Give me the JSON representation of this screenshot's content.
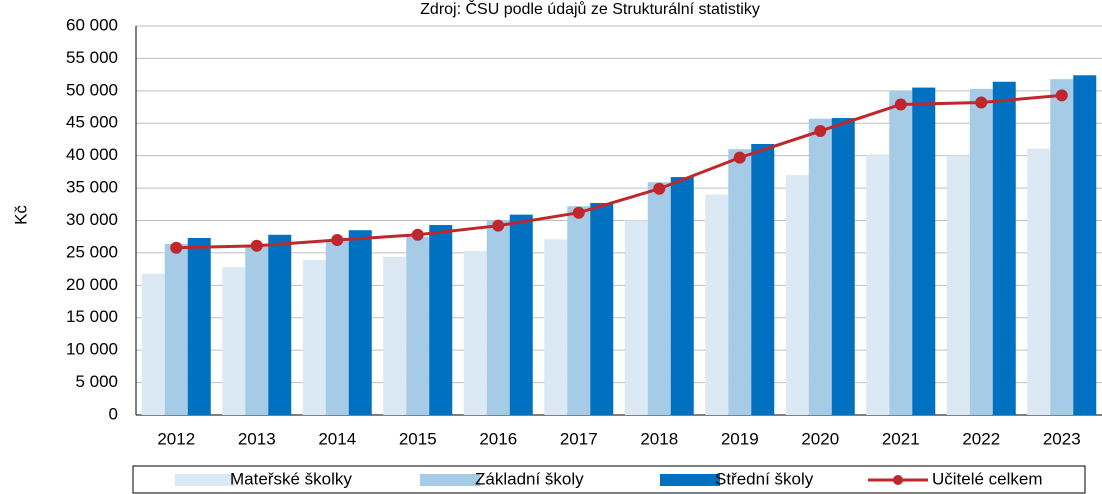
{
  "chart_data": {
    "type": "bar_line",
    "title": "Zdroj: ČSU podle údajů ze Strukturální statistiky",
    "y_label": "Kč",
    "categories": [
      "2012",
      "2013",
      "2014",
      "2015",
      "2016",
      "2017",
      "2018",
      "2019",
      "2020",
      "2021",
      "2022",
      "2023"
    ],
    "series": [
      {
        "name": "Mateřské školky",
        "type": "bar",
        "color": "#dbe9f5",
        "values": [
          21800,
          22800,
          23900,
          24400,
          25300,
          27100,
          30000,
          34000,
          37000,
          40200,
          40000,
          41100
        ]
      },
      {
        "name": "Základní školy",
        "type": "bar",
        "color": "#a6cbe7",
        "values": [
          26400,
          26000,
          27000,
          27500,
          30000,
          32200,
          35900,
          41000,
          45700,
          50000,
          50300,
          51800
        ]
      },
      {
        "name": "Střední školy",
        "type": "bar",
        "color": "#0070c0",
        "values": [
          27300,
          27800,
          28500,
          29300,
          30900,
          32700,
          36700,
          41800,
          45800,
          50500,
          51400,
          52400
        ]
      },
      {
        "name": "Učitelé celkem",
        "type": "line",
        "color": "#c0272d",
        "values": [
          25800,
          26100,
          27000,
          27800,
          29200,
          31200,
          34900,
          39700,
          43800,
          47900,
          48200,
          49300
        ]
      }
    ],
    "ylim": [
      0,
      60000
    ],
    "yticks": [
      0,
      {
        "value": 5000,
        "label": "5 000"
      },
      {
        "value": 10000,
        "label": "10 000"
      },
      {
        "value": 15000,
        "label": "15 000"
      },
      {
        "value": 20000,
        "label": "20 000"
      },
      {
        "value": 25000,
        "label": "25 000"
      },
      {
        "value": 30000,
        "label": "30 000"
      },
      {
        "value": 35000,
        "label": "35 000"
      },
      {
        "value": 40000,
        "label": "40 000"
      },
      {
        "value": 45000,
        "label": "45 000"
      },
      {
        "value": 50000,
        "label": "50 000"
      },
      {
        "value": 55000,
        "label": "55 000"
      },
      {
        "value": 60000,
        "label": "60 000"
      }
    ],
    "grid": true,
    "legend": "bottom"
  }
}
